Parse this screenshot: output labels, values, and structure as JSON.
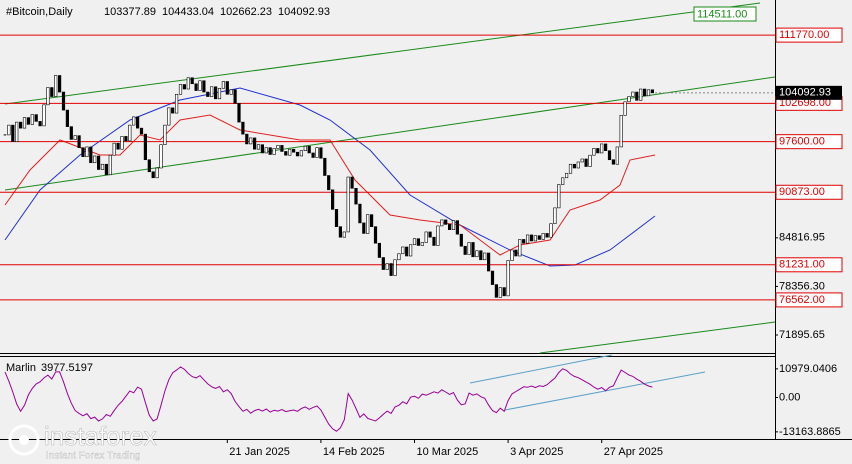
{
  "chart_data": {
    "type": "candlestick",
    "title": "#Bitcoin,Daily",
    "header_values": [
      103377.89,
      104433.04,
      102662.23,
      104092.93
    ],
    "categories": [
      null,
      null,
      null,
      null,
      null,
      null,
      null,
      null,
      null,
      null,
      null,
      null,
      null,
      null,
      null,
      null,
      null,
      null,
      null,
      null,
      null,
      null,
      null,
      null,
      null,
      null,
      null,
      null,
      null,
      null,
      null,
      null,
      null,
      null,
      null,
      null,
      null,
      null,
      null,
      null,
      null,
      null,
      null,
      null,
      null,
      null,
      null,
      null,
      null,
      null,
      null,
      null,
      null,
      null,
      null,
      null,
      null,
      "21 Jan 2025",
      null,
      null,
      null,
      null,
      null,
      null,
      null,
      null,
      null,
      null,
      null,
      null,
      null,
      null,
      null,
      null,
      null,
      null,
      null,
      null,
      null,
      null,
      null,
      "14 Feb 2025",
      null,
      null,
      null,
      null,
      null,
      null,
      null,
      null,
      null,
      null,
      null,
      null,
      null,
      null,
      null,
      null,
      null,
      null,
      null,
      null,
      null,
      null,
      null,
      "10 Mar 2025",
      null,
      null,
      null,
      null,
      null,
      null,
      null,
      null,
      null,
      null,
      null,
      null,
      null,
      null,
      null,
      null,
      null,
      null,
      null,
      null,
      null,
      null,
      null,
      "3 Apr 2025",
      null,
      null,
      null,
      null,
      null,
      null,
      null,
      null,
      null,
      null,
      null,
      null,
      null,
      null,
      null,
      null,
      null,
      null,
      null,
      null,
      null,
      null,
      null,
      "27 Apr 2025",
      null,
      null,
      null,
      null,
      null,
      null,
      null,
      null,
      null,
      null,
      null,
      null,
      null
    ],
    "close": [
      98500,
      99800,
      97600,
      100200,
      99400,
      100800,
      99900,
      101200,
      100300,
      99700,
      102500,
      104800,
      103600,
      106400,
      104200,
      101800,
      99600,
      97900,
      98400,
      96800,
      95600,
      96900,
      94800,
      95700,
      93900,
      94600,
      93200,
      95800,
      97400,
      96600,
      98300,
      97700,
      99800,
      100900,
      99400,
      98600,
      95200,
      93600,
      92800,
      94100,
      97200,
      99800,
      102100,
      101400,
      103900,
      105200,
      104600,
      106100,
      105300,
      104400,
      105700,
      104200,
      103600,
      104900,
      103300,
      104700,
      105600,
      103900,
      104500,
      102700,
      100200,
      98600,
      97300,
      98100,
      96600,
      97200,
      96100,
      96800,
      95900,
      96700,
      97100,
      96300,
      95800,
      96600,
      96200,
      95700,
      96400,
      97000,
      96100,
      95500,
      96800,
      95400,
      93100,
      91200,
      88600,
      86300,
      84900,
      85600,
      92900,
      91400,
      89300,
      86800,
      85400,
      87900,
      86300,
      84100,
      82200,
      80600,
      81400,
      79800,
      81900,
      82700,
      83600,
      82400,
      83900,
      84700,
      83800,
      84200,
      85600,
      84900,
      83800,
      86400,
      87200,
      86600,
      85900,
      87100,
      85300,
      83700,
      82600,
      84200,
      82300,
      83100,
      81900,
      82800,
      80400,
      78600,
      76900,
      78200,
      77100,
      81800,
      83200,
      82400,
      84600,
      84100,
      85200,
      84400,
      85100,
      84600,
      85400,
      84900,
      86700,
      88800,
      91900,
      92800,
      93400,
      94600,
      94100,
      94900,
      95300,
      94300,
      95800,
      96700,
      96100,
      97300,
      96400,
      95200,
      94600,
      96900,
      101100,
      102900,
      103600,
      104200,
      103100,
      104600,
      103700,
      104500,
      104092.93
    ],
    "ylim": [
      69503,
      116437
    ],
    "yticks": [
      71895.65,
      {
        "value": 78356.3,
        "label": "78356.30"
      },
      84816.95
    ],
    "levels": [
      {
        "value": 111770,
        "label": "111770.00"
      },
      {
        "value": 102698,
        "label": "102698.00"
      },
      {
        "value": 97600,
        "label": "97600.00"
      },
      {
        "value": 90873,
        "label": "90873.00"
      },
      {
        "value": 81231,
        "label": "81231.00"
      },
      {
        "value": 76562,
        "label": "76562.00"
      }
    ],
    "level_color": "#e00000",
    "channel_target": {
      "value": 114511,
      "label": "114511.00"
    },
    "last_price": 104092.93,
    "indicator": {
      "name": "Marlin",
      "color": "#990099",
      "ylim": [
        -15900,
        15522
      ],
      "yticks": [
        10979.0406,
        {
          "value": 0,
          "label": "0.00"
        },
        -13163.8865
      ],
      "values": [
        9800,
        6200,
        2100,
        -2500,
        -5300,
        -3000,
        1000,
        3500,
        5200,
        6000,
        7500,
        8600,
        7100,
        9800,
        9800,
        6000,
        1500,
        -2200,
        -5000,
        -6100,
        -7000,
        -6200,
        -8100,
        -7500,
        -9000,
        -8200,
        -6500,
        -7200,
        -5000,
        -3000,
        -1500,
        500,
        2500,
        1800,
        4000,
        3200,
        -2000,
        -6800,
        -9000,
        -8200,
        -3000,
        2500,
        6800,
        9500,
        10500,
        11700,
        10800,
        9200,
        8000,
        7500,
        8400,
        6800,
        5200,
        4100,
        3500,
        4200,
        2200,
        3000,
        1500,
        -1500,
        -3500,
        -5300,
        -4500,
        -6000,
        -5000,
        -4500,
        -5200,
        -4400,
        -5600,
        -4900,
        -5200,
        -4600,
        -5400,
        -5100,
        -4800,
        -5300,
        -4200,
        -3600,
        -4500,
        -3800,
        -3200,
        -4800,
        -7500,
        -10200,
        -12000,
        -12900,
        -11600,
        -8500,
        1500,
        -1000,
        -4200,
        -7600,
        -6300,
        -8000,
        -8500,
        -9000,
        -7800,
        -6400,
        -5200,
        -6100,
        -3600,
        -3000,
        -1600,
        -2400,
        100,
        500,
        -300,
        1300,
        900,
        1500,
        2200,
        1700,
        3000,
        2100,
        1200,
        1900,
        -1000,
        -2800,
        -2400,
        1700,
        900,
        1400,
        300,
        -300,
        -2900,
        -5000,
        -5800,
        -4100,
        -5300,
        -1200,
        1400,
        2300,
        3200,
        4100,
        3900,
        4400,
        3800,
        4500,
        4200,
        4900,
        6200,
        7400,
        9600,
        11000,
        10400,
        9000,
        8100,
        7600,
        6800,
        5900,
        5100,
        4000,
        3200,
        3800,
        2600,
        3900,
        4500,
        7600,
        10500,
        9600,
        8600,
        8100,
        7000,
        6200,
        5100,
        4400,
        3977.5197
      ]
    },
    "watermark": "instaforex",
    "watermark_sub": "Instant Forex Trading"
  }
}
